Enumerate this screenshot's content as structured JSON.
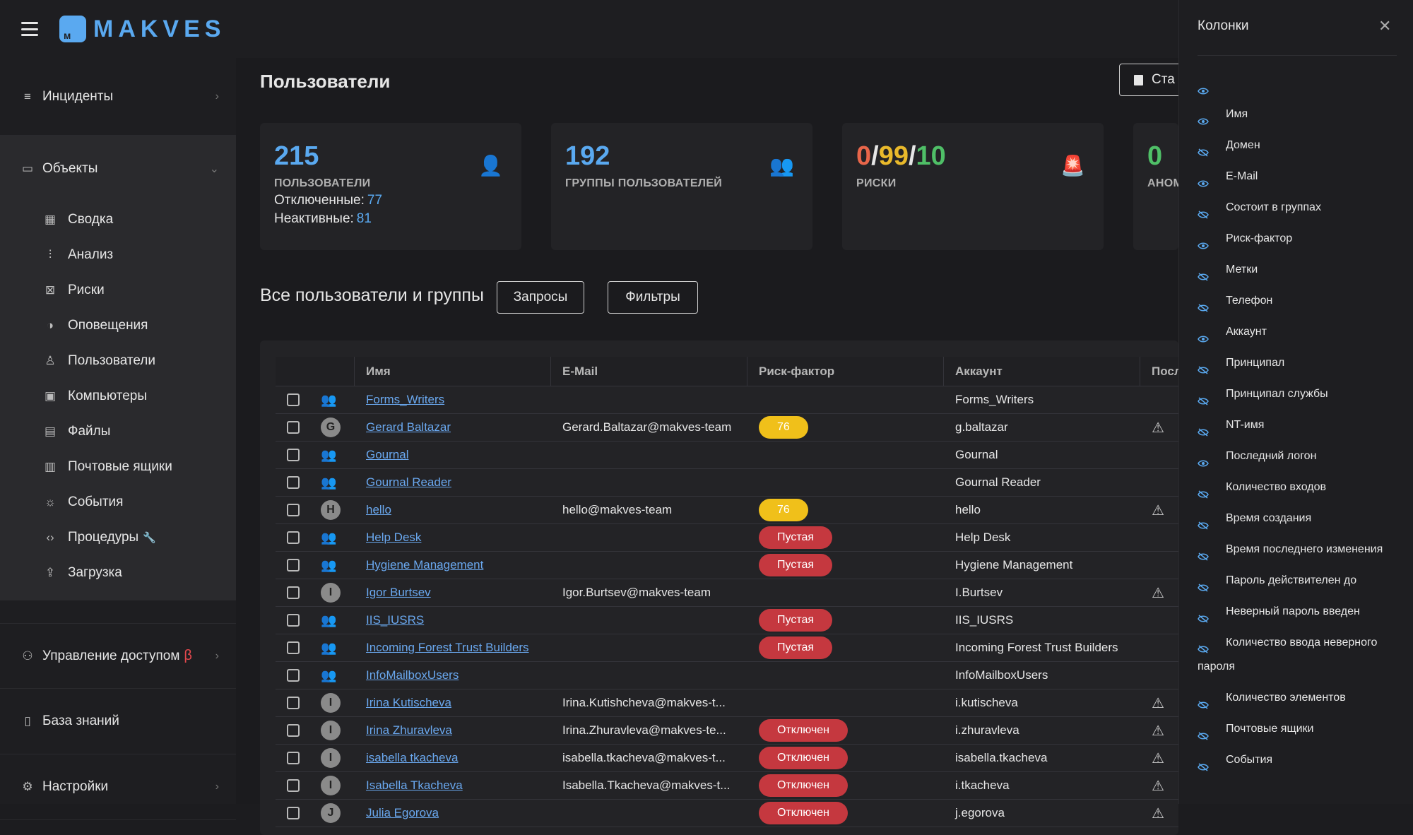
{
  "app": {
    "logo_text": "MAKVES"
  },
  "sidebar": {
    "incidents": "Инциденты",
    "objects": "Объекты",
    "sub_items": [
      {
        "label": "Сводка",
        "icon": "dashboard-icon"
      },
      {
        "label": "Анализ",
        "icon": "analysis-icon"
      },
      {
        "label": "Риски",
        "icon": "risks-icon"
      },
      {
        "label": "Оповещения",
        "icon": "alerts-icon"
      },
      {
        "label": "Пользователи",
        "icon": "user-icon"
      },
      {
        "label": "Компьютеры",
        "icon": "computer-icon"
      },
      {
        "label": "Файлы",
        "icon": "files-icon"
      },
      {
        "label": "Почтовые ящики",
        "icon": "mailbox-icon"
      },
      {
        "label": "События",
        "icon": "events-icon"
      },
      {
        "label": "Процедуры",
        "icon": "code-icon"
      },
      {
        "label": "Загрузка",
        "icon": "upload-icon"
      }
    ],
    "access": "Управление доступом",
    "access_beta": "β",
    "knowledge": "База знаний",
    "settings": "Настройки"
  },
  "main": {
    "title": "Пользователи",
    "report_button": "Ста",
    "cards": {
      "users": {
        "value": "215",
        "label": "ПОЛЬЗОВАТЕЛИ",
        "disabled_label": "Отключенные:",
        "disabled_value": "77",
        "inactive_label": "Неактивные:",
        "inactive_value": "81"
      },
      "groups": {
        "value": "192",
        "label": "ГРУППЫ ПОЛЬЗОВАТЕЛЕЙ"
      },
      "risks": {
        "v1": "0",
        "v2": "99",
        "v3": "10",
        "sep": "/",
        "label": "РИСКИ"
      },
      "anomalies": {
        "value": "0",
        "label": "АНОМ"
      }
    },
    "section_title": "Все пользователи и группы",
    "queries_button": "Запросы",
    "filters_button": "Фильтры"
  },
  "table": {
    "headers": {
      "name": "Имя",
      "email": "E-Mail",
      "risk": "Риск-фактор",
      "account": "Аккаунт",
      "last": "Посл"
    },
    "rows": [
      {
        "type": "group",
        "name": "Forms_Writers",
        "email": "",
        "risk": "",
        "risk_color": "",
        "account": "Forms_Writers",
        "warn": false
      },
      {
        "type": "user",
        "avatar": "G",
        "name": "Gerard Baltazar",
        "email": "Gerard.Baltazar@makves-team",
        "risk": "76",
        "risk_color": "yellow",
        "account": "g.baltazar",
        "warn": true
      },
      {
        "type": "group",
        "name": "Gournal",
        "email": "",
        "risk": "",
        "risk_color": "",
        "account": "Gournal",
        "warn": false
      },
      {
        "type": "group",
        "name": "Gournal Reader",
        "email": "",
        "risk": "",
        "risk_color": "",
        "account": "Gournal Reader",
        "warn": false
      },
      {
        "type": "user",
        "avatar": "H",
        "name": "hello",
        "email": "hello@makves-team",
        "risk": "76",
        "risk_color": "yellow",
        "account": "hello",
        "warn": true
      },
      {
        "type": "group",
        "name": "Help Desk",
        "email": "",
        "risk": "Пустая",
        "risk_color": "red",
        "account": "Help Desk",
        "warn": false
      },
      {
        "type": "group",
        "name": "Hygiene Management",
        "email": "",
        "risk": "Пустая",
        "risk_color": "red",
        "account": "Hygiene Management",
        "warn": false
      },
      {
        "type": "user",
        "avatar": "I",
        "name": "Igor Burtsev",
        "email": "Igor.Burtsev@makves-team",
        "risk": "",
        "risk_color": "",
        "account": "I.Burtsev",
        "warn": true
      },
      {
        "type": "group",
        "name": "IIS_IUSRS",
        "email": "",
        "risk": "Пустая",
        "risk_color": "red",
        "account": "IIS_IUSRS",
        "warn": false
      },
      {
        "type": "group",
        "name": "Incoming Forest Trust Builders",
        "email": "",
        "risk": "Пустая",
        "risk_color": "red",
        "account": "Incoming Forest Trust Builders",
        "warn": false
      },
      {
        "type": "group",
        "name": "InfoMailboxUsers",
        "email": "",
        "risk": "",
        "risk_color": "",
        "account": "InfoMailboxUsers",
        "warn": false
      },
      {
        "type": "user",
        "avatar": "I",
        "name": "Irina Kutischeva",
        "email": "Irina.Kutishcheva@makves-t...",
        "risk": "",
        "risk_color": "",
        "account": "i.kutischeva",
        "warn": true
      },
      {
        "type": "user",
        "avatar": "I",
        "name": "Irina Zhuravleva",
        "email": "Irina.Zhuravleva@makves-te...",
        "risk": "Отключен",
        "risk_color": "red",
        "account": "i.zhuravleva",
        "warn": true
      },
      {
        "type": "user",
        "avatar": "I",
        "name": "isabella tkacheva",
        "email": "isabella.tkacheva@makves-t...",
        "risk": "Отключен",
        "risk_color": "red",
        "account": "isabella.tkacheva",
        "warn": true
      },
      {
        "type": "user",
        "avatar": "I",
        "name": "Isabella Tkacheva",
        "email": "Isabella.Tkacheva@makves-t...",
        "risk": "Отключен",
        "risk_color": "red",
        "account": "i.tkacheva",
        "warn": true
      },
      {
        "type": "user",
        "avatar": "J",
        "name": "Julia Egorova",
        "email": "",
        "risk": "Отключен",
        "risk_color": "red",
        "account": "j.egorova",
        "warn": true
      }
    ]
  },
  "column_panel": {
    "title": "Колонки",
    "items": [
      {
        "label": "",
        "visible": true
      },
      {
        "label": "Имя",
        "visible": true
      },
      {
        "label": "Домен",
        "visible": false
      },
      {
        "label": "E-Mail",
        "visible": true
      },
      {
        "label": "Состоит в группах",
        "visible": false
      },
      {
        "label": "Риск-фактор",
        "visible": true
      },
      {
        "label": "Метки",
        "visible": false
      },
      {
        "label": "Телефон",
        "visible": false
      },
      {
        "label": "Аккаунт",
        "visible": true
      },
      {
        "label": "Принципал",
        "visible": false
      },
      {
        "label": "Принципал службы",
        "visible": false
      },
      {
        "label": "NT-имя",
        "visible": false
      },
      {
        "label": "Последний логон",
        "visible": true
      },
      {
        "label": "Количество входов",
        "visible": false
      },
      {
        "label": "Время создания",
        "visible": false
      },
      {
        "label": "Время последнего изменения",
        "visible": false
      },
      {
        "label": "Пароль действителен до",
        "visible": false
      },
      {
        "label": "Неверный пароль введен",
        "visible": false
      },
      {
        "label": "Количество ввода неверного пароля",
        "visible": false
      },
      {
        "label": "Количество элементов",
        "visible": false
      },
      {
        "label": "Почтовые ящики",
        "visible": false
      },
      {
        "label": "События",
        "visible": false
      }
    ]
  },
  "colors": {
    "accent": "#5aa9f0",
    "risk_yellow": "#f0c01a",
    "risk_red": "#c5383f",
    "risk_green": "#4fbf67",
    "risk_orange": "#e8664a"
  }
}
